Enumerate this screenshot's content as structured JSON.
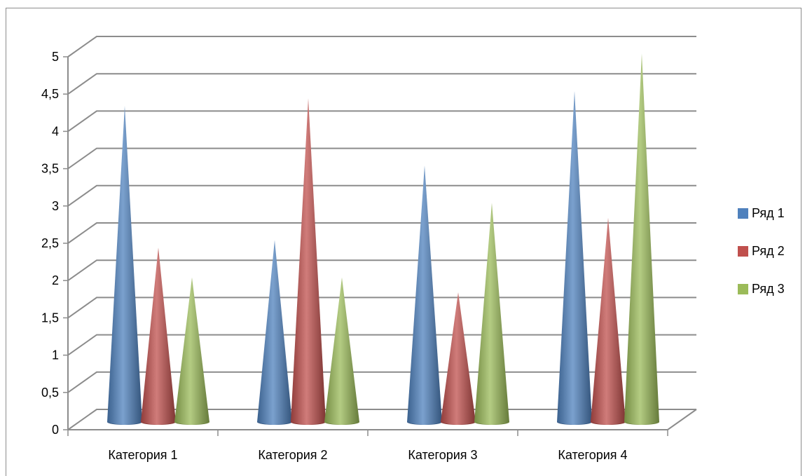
{
  "chart_data": {
    "type": "bar",
    "style": "3d-cone",
    "categories": [
      "Категория 1",
      "Категория 2",
      "Категория 3",
      "Категория 4"
    ],
    "series": [
      {
        "name": "Ряд 1",
        "values": [
          4.3,
          2.5,
          3.5,
          4.5
        ],
        "color": "#4f81bd"
      },
      {
        "name": "Ряд 2",
        "values": [
          2.4,
          4.4,
          1.8,
          2.8
        ],
        "color": "#c0504d"
      },
      {
        "name": "Ряд 3",
        "values": [
          2.0,
          2.0,
          3.0,
          5.0
        ],
        "color": "#9bbb59"
      }
    ],
    "ylim": [
      0,
      5
    ],
    "yticks": [
      "0",
      "0,5",
      "1",
      "1,5",
      "2",
      "2,5",
      "3",
      "3,5",
      "4",
      "4,5",
      "5"
    ],
    "grid": true,
    "legend_position": "right"
  }
}
